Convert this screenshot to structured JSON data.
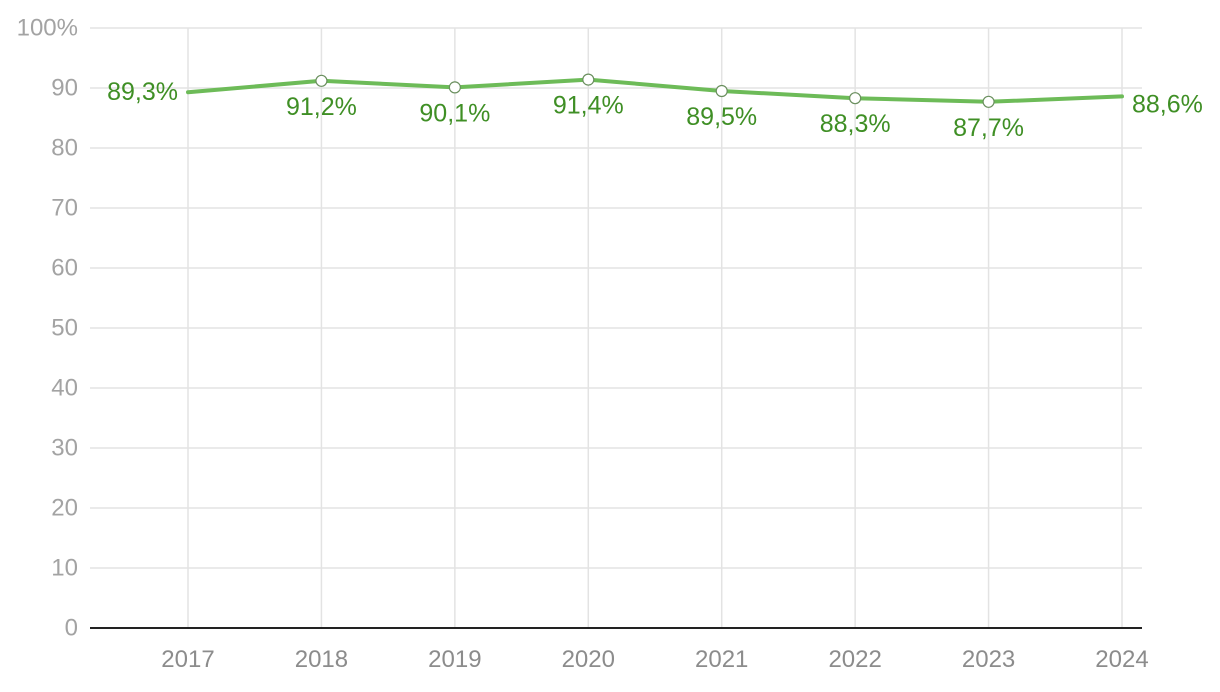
{
  "chart_data": {
    "type": "line",
    "title": "",
    "xlabel": "",
    "ylabel": "",
    "categories": [
      "2017",
      "2018",
      "2019",
      "2020",
      "2021",
      "2022",
      "2023",
      "2024"
    ],
    "series": [
      {
        "values": [
          89.3,
          91.2,
          90.1,
          91.4,
          89.5,
          88.3,
          87.7,
          88.6
        ],
        "labels": [
          "89,3%",
          "91,2%",
          "90,1%",
          "91,4%",
          "89,5%",
          "88,3%",
          "87,7%",
          "88,6%"
        ],
        "color": "#6dbb58"
      }
    ],
    "ylim": [
      0,
      100
    ],
    "yticks": [
      0,
      10,
      20,
      30,
      40,
      50,
      60,
      70,
      80,
      90,
      100
    ],
    "ytick_labels": [
      "0",
      "10",
      "20",
      "30",
      "40",
      "50",
      "60",
      "70",
      "80",
      "90",
      "100%"
    ],
    "grid": true,
    "legend": "none",
    "colors": {
      "line": "#6dbb58",
      "label": "#3f8f25",
      "grid": "#e3e3e3",
      "axis": "#222222",
      "tick_text": "#a3a3a3"
    }
  }
}
